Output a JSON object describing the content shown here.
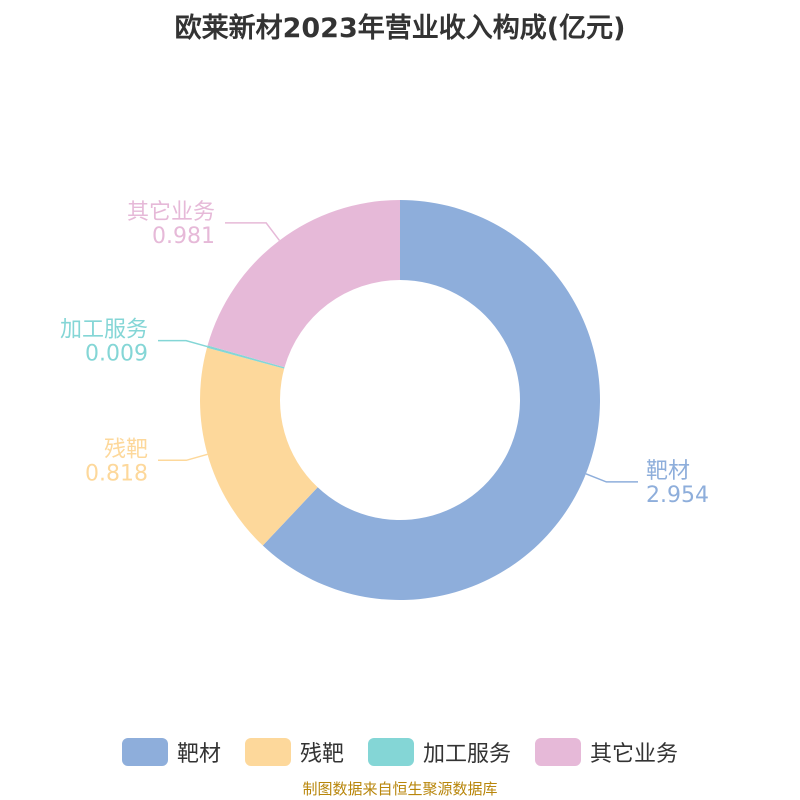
{
  "chart_data": {
    "type": "pie",
    "title": "欧莱新材2023年营业收入构成(亿元)",
    "categories": [
      "靶材",
      "残靶",
      "加工服务",
      "其它业务"
    ],
    "values": [
      2.954,
      0.818,
      0.009,
      0.981
    ],
    "value_labels": [
      "2.954",
      "0.818",
      "0.009",
      "0.981"
    ],
    "colors": [
      "#8eaedb",
      "#fdd89b",
      "#84d6d6",
      "#e6b9d8"
    ],
    "legend": "bottom"
  },
  "source": "制图数据来自恒生聚源数据库"
}
